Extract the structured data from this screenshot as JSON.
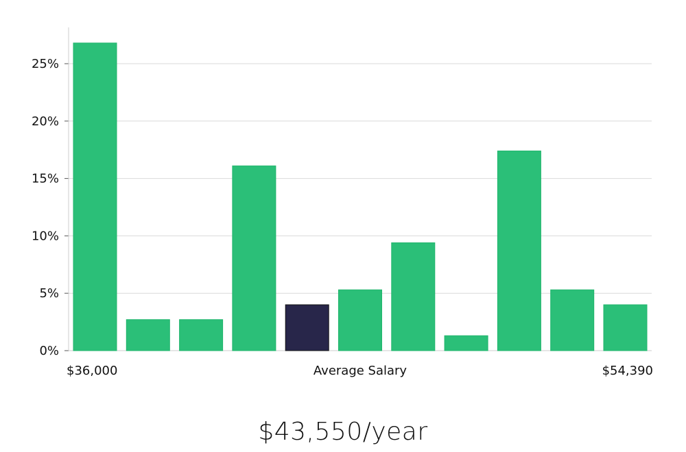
{
  "chart_data": {
    "type": "bar",
    "title": "",
    "ylabel": "",
    "xlabel": "Average Salary",
    "x_start_label": "$36,000",
    "x_end_label": "$54,390",
    "ylim": [
      0,
      28
    ],
    "yticks": [
      0,
      5,
      10,
      15,
      20,
      25
    ],
    "ytick_labels": [
      "0%",
      "5%",
      "10%",
      "15%",
      "20%",
      "25%"
    ],
    "values": [
      26.8,
      2.7,
      2.7,
      16.1,
      4.0,
      5.3,
      9.4,
      1.3,
      17.4,
      5.3,
      4.0
    ],
    "highlight_index": 4,
    "grid": true
  },
  "colors": {
    "bar": "#2bbf78",
    "bar_edge": "#20b56c",
    "highlight": "#28264a",
    "grid": "#d9d9d9",
    "axis": "#cccccc"
  },
  "summary": {
    "salary": "$43,550/year"
  }
}
